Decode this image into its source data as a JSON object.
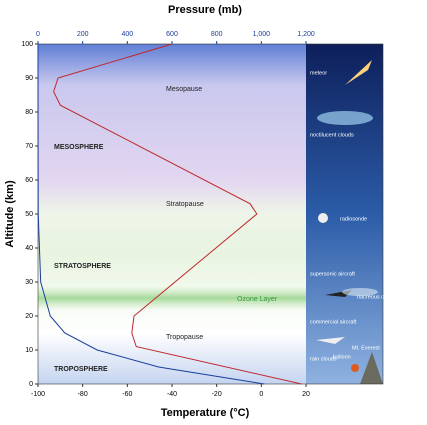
{
  "chart_data": {
    "type": "line",
    "title": "Pressure (mb)",
    "xlabel": "Temperature (°C)",
    "ylabel": "Altitude (km)",
    "xlim": [
      -100,
      20
    ],
    "xticks": [
      -100,
      -80,
      -60,
      -40,
      -20,
      0,
      20
    ],
    "x2lim": [
      0,
      1200
    ],
    "x2ticks": [
      0,
      200,
      400,
      600,
      800,
      {
        "value": 1000,
        "label": "1,000"
      },
      {
        "value": 1200,
        "label": "1,200"
      }
    ],
    "ylim": [
      0,
      100
    ],
    "yticks": [
      0,
      10,
      20,
      30,
      40,
      50,
      60,
      70,
      80,
      90,
      100
    ],
    "series": [
      {
        "color": "#c0282d",
        "x": [
          18,
          -56,
          -58,
          -57,
          -2,
          -5,
          -90,
          -93,
          -91,
          -40
        ],
        "y": [
          0,
          11,
          15,
          20,
          50,
          53,
          82,
          86,
          90,
          100
        ]
      },
      {
        "color": "#1a3d9c",
        "axis": "x2",
        "x": [
          1013,
          540,
          265,
          120,
          55,
          12,
          1,
          0.3,
          0
        ],
        "y": [
          0,
          5,
          10,
          15,
          20,
          30,
          50,
          70,
          100
        ]
      }
    ],
    "annotations": [
      "Mesopause",
      "MESOSPHERE",
      "Stratopause",
      "STRATOSPHERE",
      "Ozone Layer",
      "Tropopause",
      "TROPOSPHERE"
    ]
  },
  "panel": {
    "labels": [
      "meteor",
      "noctilucent clouds",
      "radiosonde",
      "supersonic aircraft",
      "nacreous clouds",
      "commercial aircraft",
      "Mt. Everest",
      "rain clouds",
      "balloon"
    ]
  }
}
